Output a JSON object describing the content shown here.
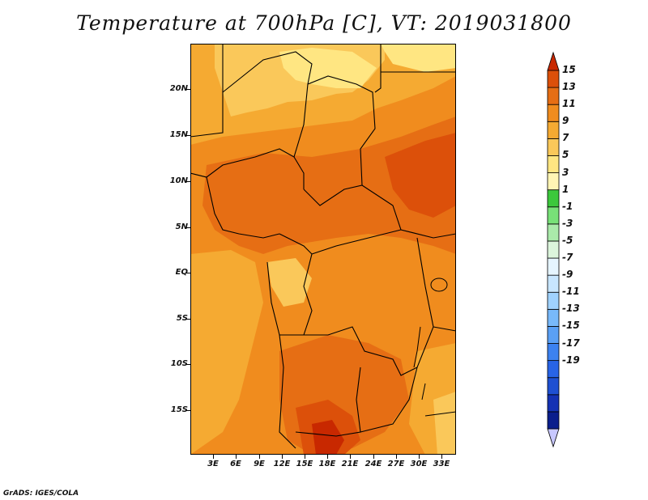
{
  "title": "Temperature at 700hPa [C], VT: 2019031800",
  "credit": "GrADS: IGES/COLA",
  "lat_labels": [
    "20N",
    "15N",
    "10N",
    "5N",
    "EQ",
    "5S",
    "10S",
    "15S"
  ],
  "lon_labels": [
    "3E",
    "6E",
    "9E",
    "12E",
    "15E",
    "18E",
    "21E",
    "24E",
    "27E",
    "30E",
    "33E"
  ],
  "colorbar": {
    "labels": [
      "15",
      "13",
      "11",
      "9",
      "7",
      "5",
      "3",
      "1",
      "-1",
      "-3",
      "-5",
      "-7",
      "-9",
      "-11",
      "-13",
      "-15",
      "-17",
      "-19"
    ],
    "colors": [
      "#c8c8ff",
      "#0a1e8c",
      "#1432b4",
      "#1e50d2",
      "#2864e6",
      "#3c82f0",
      "#5aa0f5",
      "#78b9fa",
      "#a0d2ff",
      "#c8e6ff",
      "#e6f5ff",
      "#dcf5dc",
      "#aaeaaa",
      "#78e178",
      "#3cc83c",
      "#fff5b4",
      "#ffe682",
      "#fac85a",
      "#f5aa32",
      "#f08c1e",
      "#e66e14",
      "#dc500a",
      "#c82800"
    ]
  }
}
